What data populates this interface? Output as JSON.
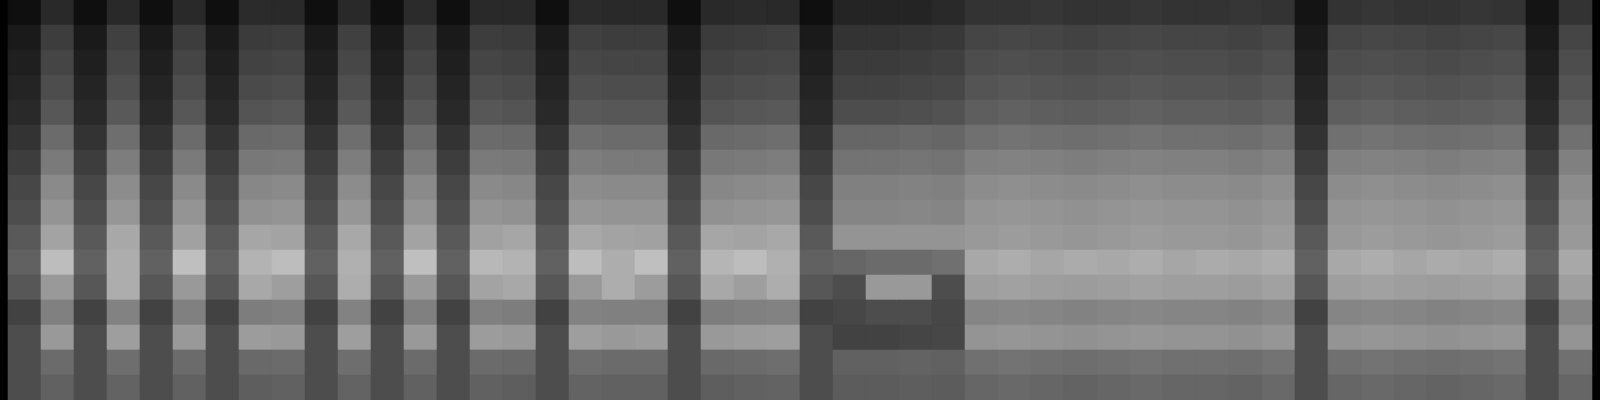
{
  "chart_data": {
    "type": "heatmap",
    "tick_labels": false,
    "zlim": [
      0,
      100
    ],
    "cells": [
      [
        6,
        16,
        6,
        16,
        6,
        16,
        6,
        17,
        16,
        6,
        16,
        6,
        17,
        6,
        16,
        16,
        6,
        17,
        16,
        16,
        6,
        16,
        17,
        16,
        6,
        14,
        14,
        14,
        16,
        20,
        20,
        21,
        20,
        20,
        21,
        20,
        20,
        21,
        20,
        8,
        20,
        21,
        20,
        20,
        21,
        20,
        8,
        20
      ],
      [
        10,
        24,
        10,
        25,
        10,
        24,
        10,
        23,
        24,
        10,
        25,
        10,
        24,
        10,
        24,
        23,
        10,
        25,
        24,
        24,
        10,
        23,
        24,
        25,
        10,
        20,
        20,
        21,
        22,
        27,
        28,
        27,
        26,
        27,
        28,
        27,
        27,
        26,
        28,
        10,
        27,
        28,
        27,
        26,
        27,
        28,
        10,
        27
      ],
      [
        12,
        27,
        12,
        28,
        12,
        27,
        12,
        26,
        27,
        12,
        28,
        12,
        27,
        12,
        27,
        26,
        12,
        28,
        27,
        27,
        12,
        26,
        27,
        28,
        12,
        23,
        23,
        24,
        25,
        30,
        31,
        30,
        29,
        30,
        31,
        30,
        30,
        29,
        31,
        12,
        30,
        31,
        30,
        29,
        30,
        31,
        12,
        30
      ],
      [
        14,
        30,
        14,
        31,
        14,
        30,
        14,
        29,
        30,
        14,
        31,
        14,
        30,
        14,
        30,
        29,
        14,
        31,
        30,
        30,
        14,
        29,
        30,
        31,
        14,
        26,
        26,
        27,
        28,
        33,
        34,
        33,
        32,
        33,
        34,
        33,
        33,
        32,
        34,
        14,
        33,
        34,
        33,
        32,
        33,
        34,
        14,
        33
      ],
      [
        16,
        34,
        16,
        35,
        16,
        34,
        16,
        33,
        34,
        16,
        35,
        16,
        34,
        16,
        34,
        33,
        16,
        35,
        34,
        34,
        16,
        33,
        34,
        35,
        16,
        30,
        30,
        31,
        32,
        37,
        38,
        37,
        36,
        37,
        38,
        37,
        37,
        36,
        38,
        16,
        37,
        38,
        37,
        36,
        37,
        38,
        16,
        37
      ],
      [
        20,
        42,
        20,
        43,
        20,
        42,
        20,
        41,
        42,
        20,
        43,
        20,
        42,
        20,
        42,
        41,
        20,
        43,
        42,
        42,
        20,
        41,
        42,
        43,
        20,
        40,
        40,
        41,
        40,
        44,
        45,
        44,
        43,
        44,
        45,
        44,
        44,
        43,
        45,
        20,
        44,
        45,
        44,
        43,
        44,
        45,
        20,
        44
      ],
      [
        24,
        48,
        24,
        49,
        24,
        48,
        24,
        47,
        48,
        24,
        49,
        24,
        48,
        24,
        48,
        47,
        24,
        49,
        48,
        48,
        24,
        47,
        48,
        49,
        24,
        45,
        45,
        46,
        45,
        50,
        51,
        50,
        49,
        50,
        51,
        50,
        50,
        49,
        51,
        24,
        50,
        51,
        50,
        49,
        50,
        51,
        24,
        50
      ],
      [
        28,
        54,
        28,
        55,
        28,
        54,
        28,
        53,
        54,
        28,
        55,
        28,
        54,
        28,
        54,
        53,
        28,
        55,
        54,
        54,
        28,
        53,
        54,
        55,
        28,
        50,
        50,
        51,
        50,
        55,
        56,
        55,
        54,
        55,
        56,
        55,
        55,
        54,
        56,
        28,
        55,
        56,
        55,
        54,
        55,
        56,
        28,
        55
      ],
      [
        30,
        58,
        30,
        59,
        30,
        58,
        30,
        57,
        58,
        30,
        59,
        30,
        58,
        30,
        58,
        57,
        30,
        59,
        58,
        58,
        30,
        57,
        58,
        59,
        30,
        52,
        52,
        53,
        52,
        58,
        59,
        58,
        57,
        58,
        59,
        58,
        58,
        57,
        59,
        30,
        58,
        59,
        58,
        57,
        58,
        59,
        30,
        58
      ],
      [
        35,
        64,
        35,
        66,
        35,
        63,
        35,
        65,
        64,
        35,
        66,
        35,
        64,
        35,
        63,
        65,
        35,
        66,
        64,
        63,
        35,
        65,
        64,
        66,
        35,
        58,
        58,
        58,
        58,
        60,
        61,
        60,
        59,
        60,
        61,
        60,
        60,
        59,
        61,
        35,
        60,
        61,
        60,
        59,
        60,
        61,
        35,
        60
      ],
      [
        38,
        74,
        38,
        68,
        38,
        75,
        38,
        70,
        74,
        38,
        69,
        38,
        75,
        38,
        72,
        70,
        38,
        74,
        68,
        75,
        38,
        71,
        74,
        69,
        38,
        40,
        42,
        42,
        44,
        66,
        68,
        65,
        67,
        66,
        68,
        65,
        67,
        66,
        68,
        38,
        66,
        68,
        65,
        67,
        66,
        68,
        38,
        66
      ],
      [
        34,
        60,
        34,
        68,
        34,
        60,
        34,
        66,
        62,
        34,
        68,
        34,
        60,
        34,
        64,
        66,
        34,
        60,
        68,
        61,
        34,
        66,
        62,
        68,
        34,
        30,
        60,
        60,
        30,
        62,
        63,
        62,
        61,
        62,
        63,
        62,
        62,
        61,
        63,
        34,
        62,
        63,
        62,
        61,
        62,
        63,
        34,
        62
      ],
      [
        26,
        50,
        26,
        51,
        26,
        50,
        26,
        49,
        50,
        26,
        51,
        26,
        50,
        26,
        50,
        49,
        26,
        51,
        50,
        50,
        26,
        49,
        50,
        51,
        26,
        28,
        30,
        30,
        28,
        52,
        53,
        52,
        51,
        52,
        53,
        52,
        52,
        51,
        53,
        26,
        52,
        53,
        52,
        51,
        52,
        53,
        26,
        52
      ],
      [
        30,
        60,
        30,
        62,
        30,
        60,
        30,
        61,
        60,
        30,
        62,
        30,
        60,
        30,
        61,
        60,
        30,
        62,
        60,
        61,
        30,
        60,
        61,
        62,
        30,
        26,
        26,
        27,
        28,
        58,
        59,
        58,
        57,
        58,
        59,
        58,
        58,
        57,
        59,
        30,
        58,
        59,
        58,
        57,
        58,
        59,
        30,
        58
      ],
      [
        30,
        42,
        30,
        43,
        30,
        42,
        30,
        41,
        42,
        30,
        43,
        30,
        42,
        30,
        42,
        41,
        30,
        43,
        42,
        42,
        30,
        41,
        42,
        43,
        30,
        38,
        38,
        39,
        38,
        44,
        45,
        44,
        43,
        44,
        45,
        44,
        44,
        43,
        45,
        30,
        44,
        45,
        44,
        43,
        44,
        45,
        30,
        44
      ],
      [
        30,
        38,
        30,
        39,
        30,
        38,
        30,
        37,
        38,
        30,
        39,
        30,
        38,
        30,
        38,
        37,
        30,
        39,
        38,
        38,
        30,
        37,
        38,
        39,
        30,
        36,
        36,
        37,
        36,
        40,
        41,
        40,
        39,
        40,
        41,
        40,
        40,
        39,
        41,
        30,
        40,
        41,
        40,
        39,
        40,
        41,
        30,
        40
      ]
    ]
  }
}
